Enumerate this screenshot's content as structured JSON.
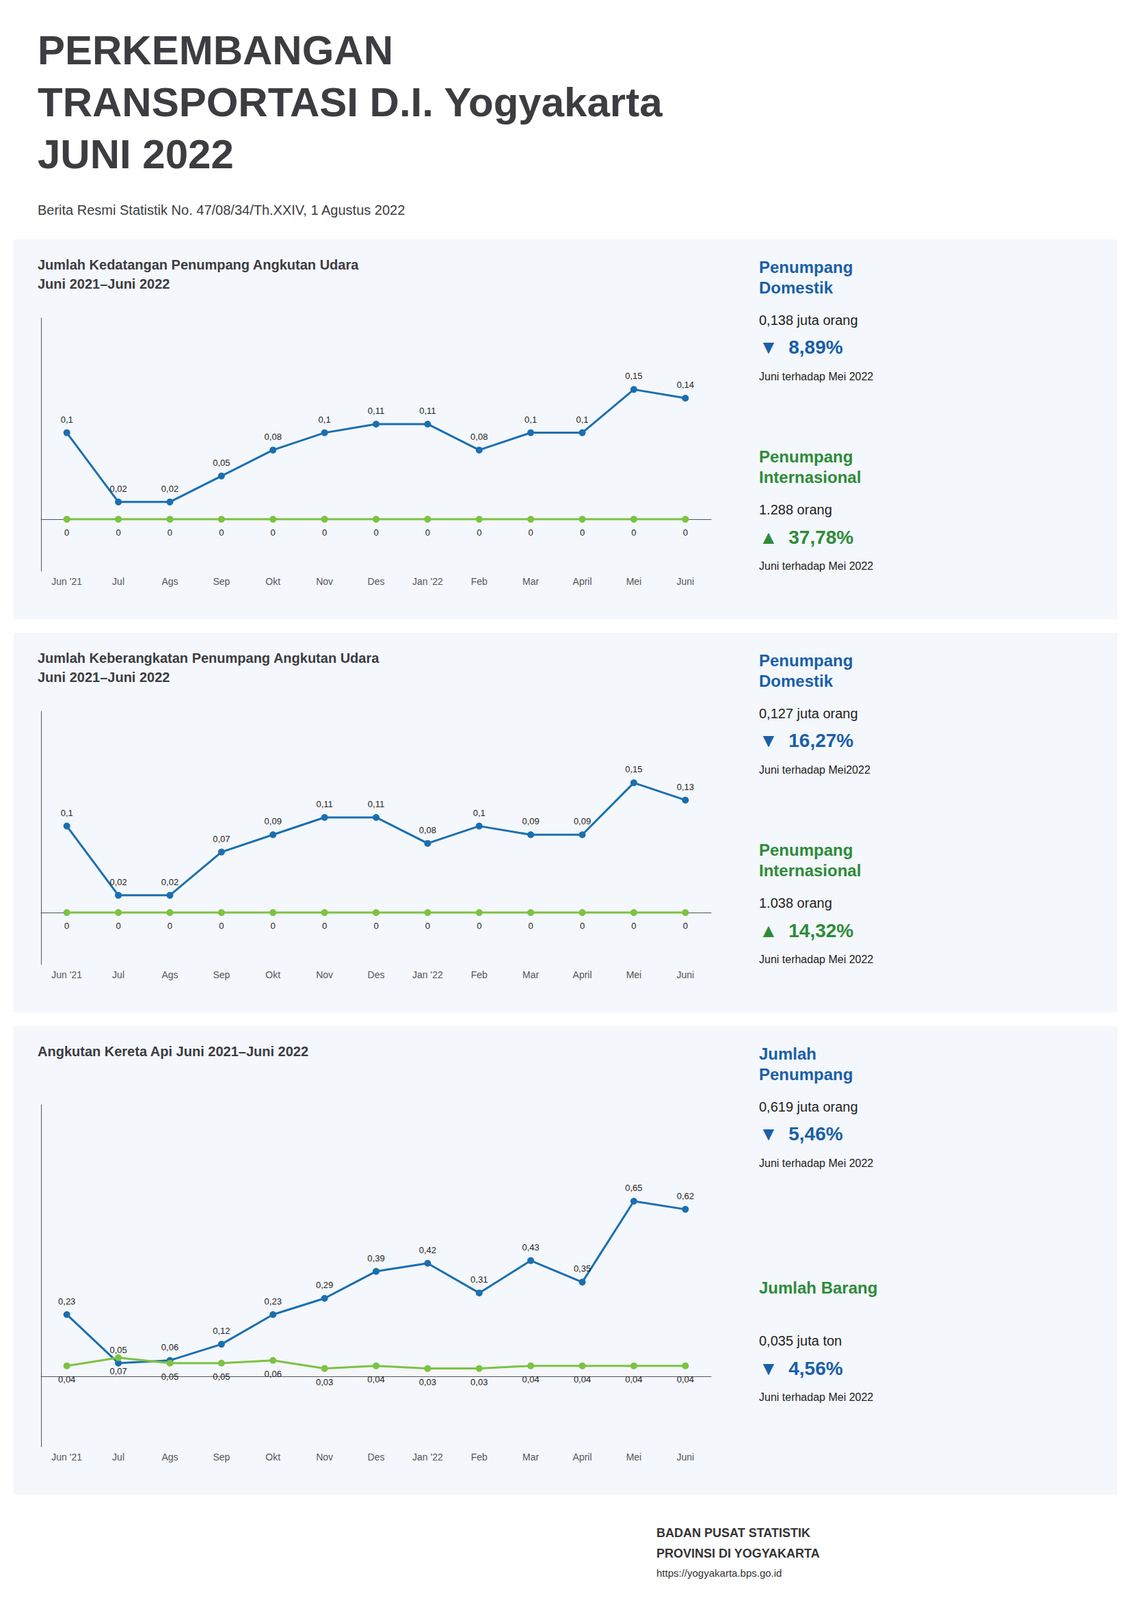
{
  "title": "PERKEMBANGAN\nTRANSPORTASI D.I. Yogyakarta\nJUNI 2022",
  "subtitle": "Berita Resmi Statistik No. 47/08/34/Th.XXIV, 1 Agustus 2022",
  "annotations": [
    "BADAN PUSAT STATISTIK",
    "PROVINSI DI YOGYAKARTA",
    "https://yogyakarta.bps.go.id"
  ],
  "chart_data": [
    {
      "type": "line",
      "title": "Jumlah Kedatangan Penumpang Angkutan Udara\nJuni 2021–Juni 2022",
      "categories": [
        "Jun '21",
        "Jul",
        "Ags",
        "Sep",
        "Okt",
        "Nov",
        "Des",
        "Jan '22",
        "Feb",
        "Mar",
        "April",
        "Mei",
        "Juni"
      ],
      "series": [
        {
          "color": "#1a6faf",
          "values": [
            0.1,
            0.02,
            0.02,
            0.05,
            0.08,
            0.1,
            0.11,
            0.11,
            0.08,
            0.1,
            0.1,
            0.15,
            0.14
          ],
          "value_labels": [
            "0,1",
            "0,02",
            "0,02",
            "0,05",
            "0,08",
            "0,1",
            "0,11",
            "0,11",
            "0,08",
            "0,1",
            "0,1",
            "0,15",
            "0,14"
          ]
        },
        {
          "color": "#7dc242",
          "values": [
            0,
            0,
            0,
            0,
            0,
            0,
            0,
            0,
            0,
            0,
            0,
            0,
            0
          ]
        }
      ],
      "ylim": [
        -0.06,
        0.2325
      ],
      "yticks": [],
      "tick_labels": "x",
      "grid": false,
      "data_labels": true,
      "marker": "circle",
      "annotations": [
        [
          {
            "text": "Penumpang\nDomestik",
            "color": "#1a5fa8"
          },
          {
            "text": "0,138 juta orang"
          },
          {
            "text": "▼  8,89%",
            "color": "#1a5fa8"
          },
          {
            "text": "Juni terhadap Mei 2022"
          }
        ],
        [
          {
            "text": "Penumpang\nInternasional",
            "color": "#2e8b3a"
          },
          {
            "text": "1.288 orang"
          },
          {
            "text": "▲  37,78%",
            "color": "#2e8b3a"
          },
          {
            "text": "Juni terhadap Mei 2022"
          }
        ]
      ]
    },
    {
      "type": "line",
      "title": "Jumlah Keberangkatan Penumpang Angkutan Udara\nJuni 2021–Juni 2022",
      "categories": [
        "Jun '21",
        "Jul",
        "Ags",
        "Sep",
        "Okt",
        "Nov",
        "Des",
        "Jan '22",
        "Feb",
        "Mar",
        "April",
        "Mei",
        "Juni"
      ],
      "series": [
        {
          "color": "#1a6faf",
          "values": [
            0.1,
            0.02,
            0.02,
            0.07,
            0.09,
            0.11,
            0.11,
            0.08,
            0.1,
            0.09,
            0.09,
            0.15,
            0.13
          ],
          "value_labels": [
            "0,1",
            "0,02",
            "0,02",
            "0,07",
            "0,09",
            "0,11",
            "0,11",
            "0,08",
            "0,1",
            "0,09",
            "0,09",
            "0,15",
            "0,13"
          ]
        },
        {
          "color": "#7dc242",
          "values": [
            0,
            0,
            0,
            0,
            0,
            0,
            0,
            0,
            0,
            0,
            0,
            0,
            0
          ]
        }
      ],
      "ylim": [
        -0.06,
        0.2325
      ],
      "yticks": [],
      "tick_labels": "x",
      "grid": false,
      "data_labels": true,
      "marker": "circle",
      "annotations": [
        [
          {
            "text": "Penumpang\nDomestik",
            "color": "#1a5fa8"
          },
          {
            "text": "0,127 juta orang"
          },
          {
            "text": "▼  16,27%",
            "color": "#1a5fa8"
          },
          {
            "text": "Juni terhadap Mei2022"
          }
        ],
        [
          {
            "text": "Penumpang\nInternasional",
            "color": "#2e8b3a"
          },
          {
            "text": "1.038 orang"
          },
          {
            "text": "▲  14,32%",
            "color": "#2e8b3a"
          },
          {
            "text": "Juni terhadap Mei 2022"
          }
        ]
      ]
    },
    {
      "type": "line",
      "title": "Angkutan Kereta Api Juni 2021–Juni 2022",
      "categories": [
        "Jun '21",
        "Jul",
        "Ags",
        "Sep",
        "Okt",
        "Nov",
        "Des",
        "Jan '22",
        "Feb",
        "Mar",
        "April",
        "Mei",
        "Juni"
      ],
      "series": [
        {
          "color": "#1a6faf",
          "values": [
            0.23,
            0.05,
            0.06,
            0.12,
            0.23,
            0.29,
            0.39,
            0.42,
            0.31,
            0.43,
            0.35,
            0.65,
            0.62
          ],
          "value_labels": [
            "0,23",
            "0,05",
            "0,06",
            "0,12",
            "0,23",
            "0,29",
            "0,39",
            "0,42",
            "0,31",
            "0,43",
            "0,35",
            "0,65",
            "0,62"
          ]
        },
        {
          "color": "#7dc242",
          "values": [
            0.04,
            0.07,
            0.05,
            0.05,
            0.06,
            0.03,
            0.04,
            0.03,
            0.03,
            0.04,
            0.04,
            0.04,
            0.04
          ],
          "value_labels": [
            "0,04",
            "0,07",
            "0,05",
            "0,05",
            "0,06",
            "0,03",
            "0,04",
            "0,03",
            "0,03",
            "0,04",
            "0,04",
            "0,04",
            "0,04"
          ]
        }
      ],
      "ylim": [
        -0.26,
        1.0075
      ],
      "yticks": [],
      "tick_labels": "x",
      "grid": false,
      "data_labels": true,
      "marker": "circle",
      "annotations": [
        [
          {
            "text": "Jumlah\nPenumpang",
            "color": "#1a5fa8"
          },
          {
            "text": "0,619 juta orang"
          },
          {
            "text": "▼  5,46%",
            "color": "#1a5fa8"
          },
          {
            "text": "Juni terhadap Mei 2022"
          }
        ],
        [
          {
            "text": "Jumlah Barang",
            "color": "#2e8b3a"
          },
          {
            "text": "0,035 juta ton"
          },
          {
            "text": "▼  4,56%",
            "color": "#1a5fa8"
          },
          {
            "text": "Juni terhadap Mei 2022"
          }
        ]
      ]
    }
  ]
}
